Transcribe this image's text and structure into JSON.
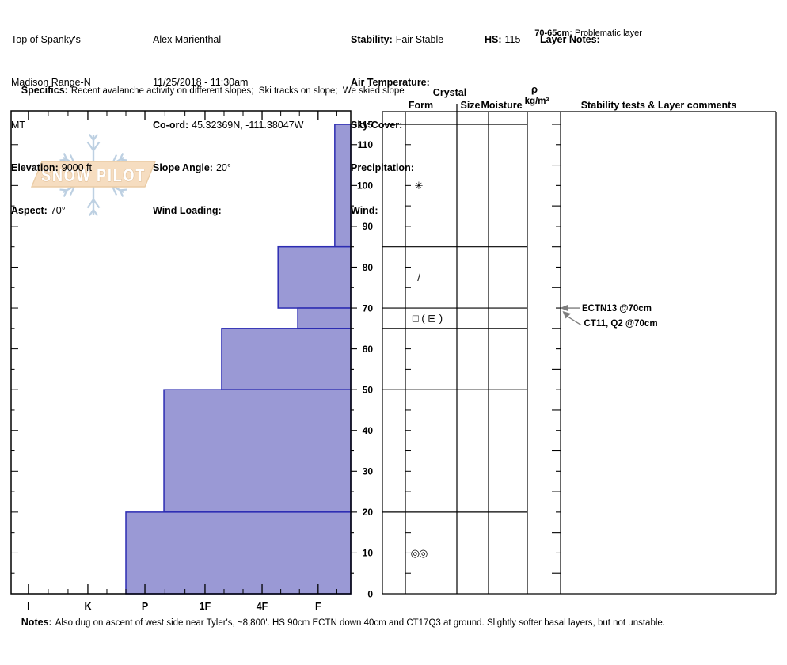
{
  "header": {
    "site": {
      "name": "Top of Spanky's",
      "range": "Madison Range-N",
      "state": "MT",
      "elevation_label": "Elevation:",
      "elevation": "9000 ft",
      "aspect_label": "Aspect:",
      "aspect": "70°"
    },
    "observer": {
      "name": "Alex Marienthal",
      "datetime": "11/25/2018 - 11:30am",
      "coord_label": "Co-ord:",
      "coord": "45.32369N, -111.38047W",
      "slope_angle_label": "Slope Angle:",
      "slope_angle": "20°",
      "wind_loading_label": "Wind Loading:",
      "wind_loading": ""
    },
    "conditions": {
      "stability_label": "Stability:",
      "stability": "Fair Stable",
      "air_temp_label": "Air Temperature:",
      "air_temp": "",
      "sky_label": "Sky Cover:",
      "sky": "",
      "precip_label": "Precipitation:",
      "precip": "",
      "wind_label": "Wind:",
      "wind": ""
    },
    "hs_label": "HS:",
    "hs": "115",
    "layer_notes_label": "Layer Notes:",
    "layer_note_depth": "70-65cm:",
    "layer_note_text": "Problematic layer",
    "specifics_label": "Specifics:",
    "specifics": "Recent avalanche activity on different slopes;  Ski tracks on slope;  We skied slope"
  },
  "notes": {
    "label": "Notes:",
    "text": "Also dug on ascent of west side near Tyler's, ~8,800'. HS 90cm ECTN down 40cm and CT17Q3 at ground. Slightly softer basal layers, but not unstable."
  },
  "chart_data": {
    "type": "bar",
    "subtype": "snow-pit-hardness-profile",
    "depth_unit": "cm",
    "depth_max": 115,
    "depth_ticks_labeled": [
      115,
      110,
      100,
      90,
      80,
      70,
      60,
      50,
      40,
      30,
      20,
      10,
      0
    ],
    "hardness_categories": [
      "I",
      "K",
      "P",
      "1F",
      "4F",
      "F"
    ],
    "hardness_axis_fractions": [
      0.051,
      0.226,
      0.394,
      0.571,
      0.739,
      0.904
    ],
    "layers": [
      {
        "top_cm": 115,
        "bottom_cm": 85,
        "hardness": "F",
        "hardness_frac": 0.953,
        "form_symbol": "✳"
      },
      {
        "top_cm": 85,
        "bottom_cm": 70,
        "hardness": "4F+",
        "hardness_frac": 0.786,
        "form_symbol": "/"
      },
      {
        "top_cm": 70,
        "bottom_cm": 65,
        "hardness": "F-",
        "hardness_frac": 0.844,
        "form_symbol": "□ ( ⊟ )"
      },
      {
        "top_cm": 65,
        "bottom_cm": 50,
        "hardness": "1F+",
        "hardness_frac": 0.62,
        "form_symbol": ""
      },
      {
        "top_cm": 50,
        "bottom_cm": 20,
        "hardness": "P+",
        "hardness_frac": 0.45,
        "form_symbol": ""
      },
      {
        "top_cm": 20,
        "bottom_cm": 0,
        "hardness": "P-",
        "hardness_frac": 0.338,
        "form_symbol": "◎◎"
      }
    ],
    "columns": {
      "crystal": "Crystal",
      "form": "Form",
      "size": "Size",
      "moisture": "Moisture",
      "rho_top": "ρ",
      "rho_bottom": "kg/m³",
      "stability": "Stability tests & Layer comments"
    },
    "tests": [
      {
        "label": "ECTN13 @70cm",
        "depth_cm": 70
      },
      {
        "label": "CT11, Q2 @70cm",
        "depth_cm": 70
      }
    ],
    "bar_fill": "#9a99d5",
    "bar_stroke": "#2c2cb2",
    "watermark": {
      "text": "SNOW PILOT",
      "flake_color": "#bdd0e2",
      "banner_fill": "#f6ddc0",
      "banner_stroke": "#eaccA5",
      "letter_stroke": "#ddba92"
    }
  }
}
